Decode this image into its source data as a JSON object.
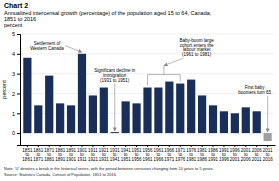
{
  "chart_data": {
    "type": "bar",
    "title": "Chart 2",
    "subtitle": "Annualized intercensal growth (percentage) of the population aged 15 to 64, Canada,\n1851 to 2016",
    "y_label": "percent",
    "categories": [
      "1851\nto\n1861",
      "1861\nto\n1871",
      "1871\nto\n1881",
      "1881\nto\n1891",
      "1891\nto\n1901",
      "1901\nto\n1911",
      "1911\nto\n1921",
      "1921\nto\n1931",
      "1931\nto\n1941",
      "1941\nto\n1951",
      "1951\nto\n1956",
      "1956\nto\n1961",
      "1961\nto\n1966",
      "1966\nto\n1971",
      "1971\nto\n1976",
      "1976\nto\n1981",
      "1981\nto\n1986",
      "1986\nto\n1991",
      "1991\nto\n1996",
      "1996\nto\n2001",
      "2001\nto\n2006",
      "2006\nto\n2011",
      "2011\nto\n2016"
    ],
    "values": [
      3.8,
      1.4,
      2.9,
      1.5,
      1.4,
      4.0,
      1.9,
      2.3,
      0.05,
      1.6,
      1.5,
      2.3,
      2.3,
      2.6,
      2.5,
      2.7,
      1.9,
      1.4,
      1.1,
      1.0,
      1.3,
      1.1,
      -0.4
    ],
    "colors": [
      "#1a2e5a",
      "#1a2e5a",
      "#1a2e5a",
      "#1a2e5a",
      "#1a2e5a",
      "#1a2e5a",
      "#1a2e5a",
      "#1a2e5a",
      "#1a2e5a",
      "#1a2e5a",
      "#1a2e5a",
      "#1a2e5a",
      "#1a2e5a",
      "#1a2e5a",
      "#1a2e5a",
      "#1a2e5a",
      "#1a2e5a",
      "#1a2e5a",
      "#1a2e5a",
      "#1a2e5a",
      "#1a2e5a",
      "#1a2e5a",
      "#a0a0a0"
    ],
    "ylim": [
      -0.6,
      5.0
    ],
    "yticks": [
      0,
      1,
      2,
      3,
      4,
      5
    ],
    "grid": true,
    "annotations": [
      "Settlement of\nWestern Canada",
      "Significant decline in\nimmigration\n(1931 to 1951)",
      "Baby-boom large\ncohort enters the\nlabour market\n(1961 to 1981)",
      "First baby\nboomers turn 65"
    ],
    "footnote": "Note: 'U' denotes a break in the historical series, with the period between censuses changing from 10 years to 5 years.",
    "source": "Source: Statistics Canada, Census of Population, 1851 to 2016."
  }
}
